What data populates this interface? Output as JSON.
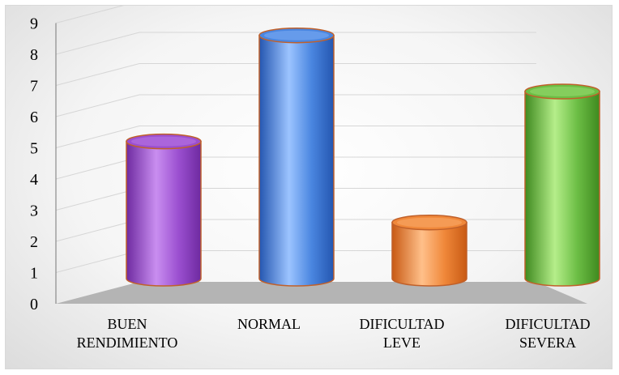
{
  "chart_data": {
    "type": "bar",
    "style": "3d-cylinder",
    "title": "",
    "xlabel": "",
    "ylabel": "",
    "categories": [
      [
        "BUEN",
        "RENDIMIENTO"
      ],
      [
        "NORMAL"
      ],
      [
        "DIFICULTAD",
        "LEVE"
      ],
      [
        "DIFICULTAD",
        "SEVERA"
      ]
    ],
    "values": [
      4.4,
      7.8,
      1.8,
      6.0
    ],
    "ylim": [
      0,
      9
    ],
    "yticks": [
      "0",
      "1",
      "2",
      "3",
      "4",
      "5",
      "6",
      "7",
      "8",
      "9"
    ],
    "grid": true,
    "legend": "none",
    "colors": {
      "bars": [
        "#9b4fd0",
        "#4a86e0",
        "#f0883a",
        "#6cbe45"
      ],
      "bars_light": [
        "#c98ef0",
        "#9cc4ff",
        "#ffc08a",
        "#b5ee8a"
      ],
      "bars_dark": [
        "#6e2aa0",
        "#2456b0",
        "#c85a14",
        "#3f8a1f"
      ],
      "bar_outline": "#c0602a",
      "floor": "#b4b4b4",
      "grid": "#d6d6d6",
      "axis": "#777777"
    }
  }
}
